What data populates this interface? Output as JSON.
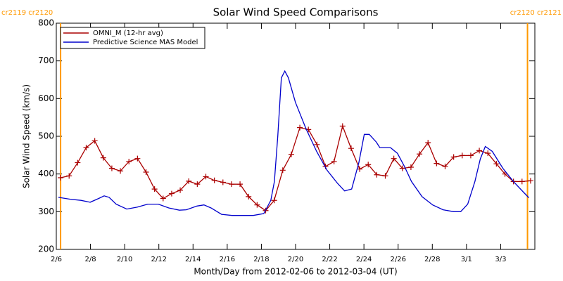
{
  "chart_data": {
    "type": "line",
    "title": "Solar Wind Speed Comparisons",
    "xlabel": "Month/Day from 2012-02-06 to 2012-03-04 (UT)",
    "ylabel": "Solar Wind Speed (km/s)",
    "xlim": [
      0,
      28
    ],
    "ylim": [
      200,
      800
    ],
    "xticks": [
      {
        "value": 0,
        "label": "2/6"
      },
      {
        "value": 2,
        "label": "2/8"
      },
      {
        "value": 4,
        "label": "2/10"
      },
      {
        "value": 6,
        "label": "2/12"
      },
      {
        "value": 8,
        "label": "2/14"
      },
      {
        "value": 10,
        "label": "2/16"
      },
      {
        "value": 12,
        "label": "2/18"
      },
      {
        "value": 14,
        "label": "2/20"
      },
      {
        "value": 16,
        "label": "2/22"
      },
      {
        "value": 18,
        "label": "2/24"
      },
      {
        "value": 20,
        "label": "2/26"
      },
      {
        "value": 22,
        "label": "2/28"
      },
      {
        "value": 24,
        "label": "3/1"
      },
      {
        "value": 26,
        "label": "3/3"
      }
    ],
    "yticks": [
      200,
      300,
      400,
      500,
      600,
      700,
      800
    ],
    "grid": false,
    "legend": "upper left",
    "annotations": [
      {
        "text": "cr2119 cr2120",
        "x": 0.25,
        "color": "#ff9900"
      },
      {
        "text": "cr2120 cr2121",
        "x": 27.57,
        "color": "#ff9900"
      }
    ],
    "series": [
      {
        "name": "OMNI_M (12-hr avg)",
        "color": "#aa0000",
        "marker": "+",
        "x": [
          0.25,
          0.75,
          1.25,
          1.75,
          2.25,
          2.75,
          3.25,
          3.75,
          4.25,
          4.75,
          5.25,
          5.75,
          6.25,
          6.75,
          7.25,
          7.75,
          8.25,
          8.75,
          9.25,
          9.75,
          10.25,
          10.75,
          11.25,
          11.75,
          12.25,
          12.75,
          13.25,
          13.75,
          14.25,
          14.75,
          15.25,
          15.75,
          16.25,
          16.75,
          17.25,
          17.75,
          18.25,
          18.75,
          19.25,
          19.75,
          20.25,
          20.75,
          21.25,
          21.75,
          22.25,
          22.75,
          23.25,
          23.75,
          24.25,
          24.75,
          25.25,
          25.75,
          26.25,
          26.75,
          27.25,
          27.75
        ],
        "values": [
          390,
          395,
          430,
          470,
          488,
          443,
          415,
          408,
          433,
          441,
          405,
          360,
          335,
          348,
          357,
          381,
          373,
          393,
          383,
          378,
          373,
          373,
          340,
          318,
          303,
          330,
          410,
          452,
          523,
          518,
          478,
          420,
          433,
          527,
          468,
          413,
          425,
          398,
          395,
          441,
          415,
          418,
          453,
          483,
          428,
          420,
          445,
          449,
          449,
          462,
          455,
          427,
          400,
          380,
          380,
          382
        ]
      },
      {
        "name": "Predictive Science MAS Model",
        "color": "#0000cc",
        "x": [
          0.12,
          0.82,
          1.44,
          1.98,
          2.47,
          2.8,
          3.09,
          3.5,
          4.12,
          4.73,
          5.35,
          5.97,
          6.58,
          7.2,
          7.61,
          8.23,
          8.64,
          9.05,
          9.67,
          10.29,
          10.91,
          11.52,
          12.14,
          12.55,
          12.76,
          12.96,
          13.17,
          13.37,
          13.58,
          13.99,
          14.61,
          15.23,
          15.84,
          16.46,
          16.87,
          17.28,
          17.7,
          18.02,
          18.31,
          18.72,
          18.93,
          19.55,
          19.96,
          20.37,
          20.78,
          21.4,
          22.02,
          22.63,
          23.25,
          23.66,
          24.07,
          24.49,
          24.81,
          25.1,
          25.51,
          26.13,
          26.75,
          27.37,
          27.65
        ],
        "values": [
          338,
          333,
          330,
          325,
          335,
          342,
          338,
          320,
          307,
          312,
          320,
          320,
          310,
          304,
          305,
          315,
          318,
          310,
          293,
          290,
          290,
          290,
          295,
          330,
          380,
          500,
          655,
          673,
          655,
          590,
          520,
          460,
          410,
          375,
          355,
          360,
          430,
          505,
          505,
          485,
          470,
          470,
          455,
          420,
          380,
          340,
          318,
          305,
          300,
          300,
          320,
          380,
          440,
          473,
          460,
          415,
          380,
          350,
          337
        ]
      }
    ]
  }
}
